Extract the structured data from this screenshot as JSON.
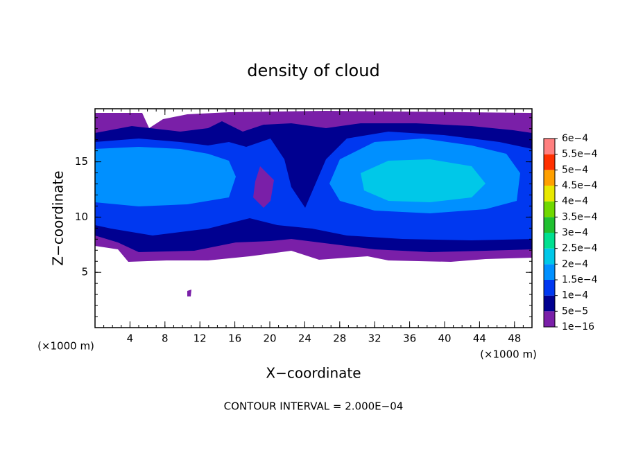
{
  "chart_data": {
    "type": "contour",
    "title": "density of cloud",
    "x_label": "X−coordinate",
    "y_label": "Z−coordinate",
    "x_unit": "(×1000 m)",
    "y_unit": "(×1000 m)",
    "footer": "CONTOUR INTERVAL = 2.000E−04",
    "xlim": [
      0,
      50
    ],
    "ylim": [
      0,
      19.8
    ],
    "xticks": [
      4,
      8,
      12,
      16,
      20,
      24,
      28,
      32,
      36,
      40,
      44,
      48
    ],
    "yticks": [
      5,
      10,
      15
    ],
    "colorbar": {
      "levels": [
        {
          "value": 1e-16,
          "label": "1e−16"
        },
        {
          "value": 5e-05,
          "label": "5e−5"
        },
        {
          "value": 0.0001,
          "label": "1e−4"
        },
        {
          "value": 0.00015,
          "label": "1.5e−4"
        },
        {
          "value": 0.0002,
          "label": "2e−4"
        },
        {
          "value": 0.00025,
          "label": "2.5e−4"
        },
        {
          "value": 0.0003,
          "label": "3e−4"
        },
        {
          "value": 0.00035,
          "label": "3.5e−4"
        },
        {
          "value": 0.0004,
          "label": "4e−4"
        },
        {
          "value": 0.00045,
          "label": "4.5e−4"
        },
        {
          "value": 0.0005,
          "label": "5e−4"
        },
        {
          "value": 0.00055,
          "label": "5.5e−4"
        },
        {
          "value": 0.0006,
          "label": "6e−4"
        }
      ],
      "colors": [
        "#7a1fa8",
        "#000090",
        "#0038f0",
        "#0090ff",
        "#00c8e8",
        "#00e090",
        "#20c030",
        "#70d800",
        "#e8e800",
        "#ffa000",
        "#ff3000",
        "#ff8080"
      ]
    }
  }
}
